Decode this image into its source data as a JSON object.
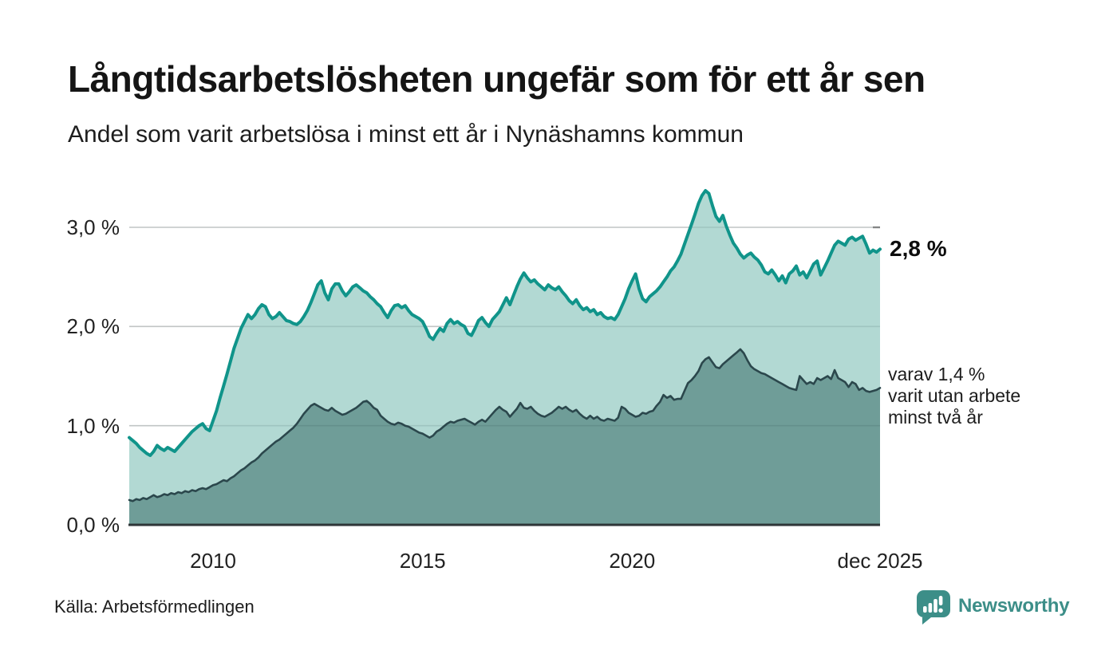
{
  "header": {
    "title": "Långtidsarbetslösheten ungefär som för ett år sen",
    "subtitle": "Andel som varit arbetslösa i minst ett år i Nynäshamns kommun"
  },
  "annotations": {
    "end_value_label": "2,8 %",
    "secondary_line1": "varav 1,4 %",
    "secondary_line2": "varit utan arbete",
    "secondary_line3": "minst två år"
  },
  "footer": {
    "source": "Källa: Arbetsförmedlingen",
    "brand": "Newsworthy"
  },
  "colors": {
    "accent_teal": "#10948a",
    "light_fill": "#b2d9d3",
    "dark_line": "#2b474c",
    "dark_fill": "#6f9d98",
    "grid": "#d9d9d9",
    "grid_end_tick": "#8f8f8f",
    "baseline": "#2e3638",
    "brand_teal": "#3c8e88"
  },
  "chart_data": {
    "type": "area",
    "title": "Långtidsarbetslösheten ungefär som för ett år sen",
    "subtitle": "Andel som varit arbetslösa i minst ett år i Nynäshamns kommun",
    "x_start": "2008-01",
    "x_end": "2025-12",
    "x_unit": "month",
    "ylim": [
      0,
      3.4
    ],
    "grid": true,
    "y_ticks": [
      {
        "label": "0,0 %",
        "value": 0
      },
      {
        "label": "1,0 %",
        "value": 1
      },
      {
        "label": "2,0 %",
        "value": 2
      },
      {
        "label": "3,0 %",
        "value": 3
      }
    ],
    "x_ticks": [
      {
        "label": "2010",
        "month_index": 24
      },
      {
        "label": "2015",
        "month_index": 84
      },
      {
        "label": "2020",
        "month_index": 144
      },
      {
        "label": "dec 2025",
        "month_index": 215
      }
    ],
    "series": [
      {
        "name": "Andel arbetslösa minst ett år",
        "color": "#10948a",
        "fill": "#b2d9d3",
        "line_width": 4,
        "end_value": 2.8,
        "values": [
          0.88,
          0.85,
          0.82,
          0.78,
          0.75,
          0.72,
          0.7,
          0.74,
          0.8,
          0.77,
          0.75,
          0.78,
          0.76,
          0.74,
          0.78,
          0.82,
          0.86,
          0.9,
          0.94,
          0.97,
          1.0,
          1.02,
          0.97,
          0.95,
          1.05,
          1.15,
          1.28,
          1.4,
          1.52,
          1.65,
          1.78,
          1.88,
          1.98,
          2.05,
          2.12,
          2.08,
          2.12,
          2.18,
          2.22,
          2.2,
          2.12,
          2.08,
          2.1,
          2.14,
          2.1,
          2.06,
          2.05,
          2.03,
          2.02,
          2.05,
          2.1,
          2.16,
          2.24,
          2.33,
          2.42,
          2.46,
          2.34,
          2.27,
          2.38,
          2.43,
          2.43,
          2.36,
          2.31,
          2.35,
          2.4,
          2.42,
          2.39,
          2.36,
          2.34,
          2.3,
          2.27,
          2.23,
          2.2,
          2.14,
          2.09,
          2.16,
          2.21,
          2.22,
          2.19,
          2.21,
          2.16,
          2.12,
          2.1,
          2.08,
          2.05,
          1.98,
          1.9,
          1.87,
          1.93,
          1.98,
          1.95,
          2.03,
          2.07,
          2.03,
          2.05,
          2.02,
          2.0,
          1.93,
          1.91,
          1.98,
          2.06,
          2.09,
          2.04,
          2.0,
          2.07,
          2.11,
          2.15,
          2.22,
          2.29,
          2.22,
          2.31,
          2.4,
          2.48,
          2.54,
          2.49,
          2.45,
          2.47,
          2.43,
          2.4,
          2.37,
          2.42,
          2.39,
          2.37,
          2.4,
          2.35,
          2.31,
          2.26,
          2.23,
          2.27,
          2.21,
          2.17,
          2.19,
          2.15,
          2.17,
          2.12,
          2.14,
          2.1,
          2.08,
          2.09,
          2.07,
          2.12,
          2.2,
          2.28,
          2.38,
          2.46,
          2.53,
          2.38,
          2.28,
          2.25,
          2.3,
          2.33,
          2.36,
          2.4,
          2.45,
          2.5,
          2.56,
          2.6,
          2.66,
          2.73,
          2.83,
          2.93,
          3.03,
          3.13,
          3.24,
          3.32,
          3.37,
          3.34,
          3.22,
          3.11,
          3.06,
          3.12,
          3.01,
          2.92,
          2.84,
          2.79,
          2.73,
          2.69,
          2.72,
          2.74,
          2.7,
          2.67,
          2.62,
          2.55,
          2.53,
          2.57,
          2.52,
          2.46,
          2.51,
          2.44,
          2.53,
          2.56,
          2.61,
          2.52,
          2.55,
          2.49,
          2.56,
          2.63,
          2.66,
          2.52,
          2.59,
          2.66,
          2.74,
          2.82,
          2.86,
          2.84,
          2.82,
          2.88,
          2.9,
          2.87,
          2.89,
          2.91,
          2.83,
          2.74,
          2.77,
          2.75,
          2.78
        ]
      },
      {
        "name": "varav utan arbete minst två år",
        "color": "#2b474c",
        "fill": "#6f9d98",
        "line_width": 2.6,
        "end_value": 1.4,
        "values": [
          0.25,
          0.24,
          0.26,
          0.25,
          0.27,
          0.26,
          0.28,
          0.3,
          0.28,
          0.29,
          0.31,
          0.3,
          0.32,
          0.31,
          0.33,
          0.32,
          0.34,
          0.33,
          0.35,
          0.34,
          0.36,
          0.37,
          0.36,
          0.38,
          0.4,
          0.41,
          0.43,
          0.45,
          0.44,
          0.47,
          0.49,
          0.52,
          0.55,
          0.57,
          0.6,
          0.63,
          0.65,
          0.68,
          0.72,
          0.75,
          0.78,
          0.81,
          0.84,
          0.86,
          0.89,
          0.92,
          0.95,
          0.98,
          1.02,
          1.07,
          1.12,
          1.16,
          1.2,
          1.22,
          1.2,
          1.18,
          1.16,
          1.15,
          1.18,
          1.15,
          1.13,
          1.11,
          1.12,
          1.14,
          1.16,
          1.18,
          1.21,
          1.24,
          1.25,
          1.22,
          1.18,
          1.16,
          1.1,
          1.07,
          1.04,
          1.02,
          1.01,
          1.03,
          1.02,
          1.0,
          0.99,
          0.97,
          0.95,
          0.93,
          0.92,
          0.9,
          0.88,
          0.9,
          0.94,
          0.96,
          0.99,
          1.02,
          1.04,
          1.03,
          1.05,
          1.06,
          1.07,
          1.05,
          1.03,
          1.01,
          1.04,
          1.06,
          1.04,
          1.08,
          1.12,
          1.16,
          1.19,
          1.16,
          1.14,
          1.09,
          1.13,
          1.17,
          1.23,
          1.18,
          1.17,
          1.19,
          1.15,
          1.12,
          1.1,
          1.09,
          1.11,
          1.13,
          1.16,
          1.19,
          1.17,
          1.19,
          1.16,
          1.14,
          1.16,
          1.12,
          1.09,
          1.07,
          1.1,
          1.07,
          1.09,
          1.06,
          1.05,
          1.07,
          1.06,
          1.05,
          1.08,
          1.19,
          1.17,
          1.13,
          1.11,
          1.09,
          1.1,
          1.13,
          1.12,
          1.14,
          1.15,
          1.2,
          1.24,
          1.31,
          1.28,
          1.3,
          1.26,
          1.27,
          1.27,
          1.35,
          1.43,
          1.46,
          1.5,
          1.55,
          1.63,
          1.67,
          1.69,
          1.64,
          1.59,
          1.58,
          1.62,
          1.65,
          1.68,
          1.71,
          1.74,
          1.77,
          1.73,
          1.66,
          1.6,
          1.57,
          1.55,
          1.53,
          1.52,
          1.5,
          1.48,
          1.46,
          1.44,
          1.42,
          1.4,
          1.38,
          1.37,
          1.36,
          1.5,
          1.46,
          1.42,
          1.44,
          1.42,
          1.48,
          1.46,
          1.48,
          1.5,
          1.47,
          1.56,
          1.48,
          1.46,
          1.44,
          1.39,
          1.44,
          1.42,
          1.36,
          1.38,
          1.35,
          1.34,
          1.35,
          1.36,
          1.38
        ]
      }
    ]
  }
}
